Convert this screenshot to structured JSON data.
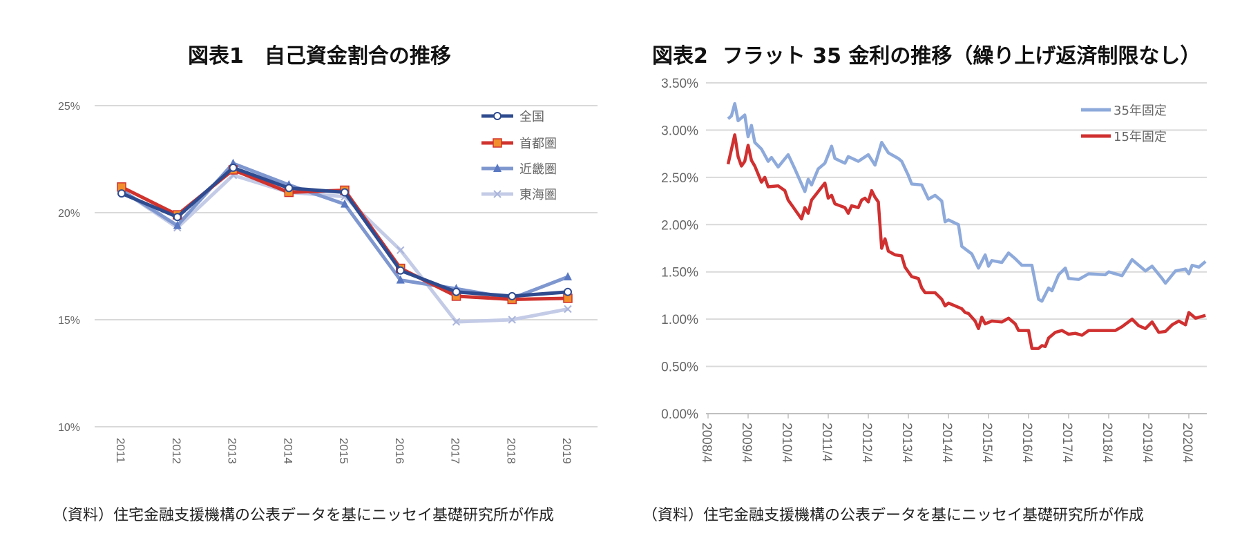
{
  "chart_data": [
    {
      "type": "line",
      "title": "図表1　自己資金割合の推移",
      "note": "（資料）住宅金融支援機構の公表データを基にニッセイ基礎研究所が作成",
      "categories": [
        "2011",
        "2012",
        "2013",
        "2014",
        "2015",
        "2016",
        "2017",
        "2018",
        "2019"
      ],
      "ylim": [
        10,
        25
      ],
      "yticks": [
        "10%",
        "15%",
        "20%",
        "25%"
      ],
      "ytick_values": [
        10,
        15,
        20,
        25
      ],
      "grid": true,
      "legend": "top-right",
      "series": [
        {
          "name": "全国",
          "color": "#2f4b8f",
          "marker": "circle",
          "values": [
            20.9,
            19.8,
            22.1,
            21.15,
            20.95,
            17.3,
            16.3,
            16.1,
            16.3
          ]
        },
        {
          "name": "首都圏",
          "color": "#d0322d",
          "marker_color": "#f28e2b",
          "marker": "square",
          "values": [
            21.2,
            19.9,
            22.0,
            20.95,
            21.05,
            17.4,
            16.1,
            15.95,
            16.0
          ]
        },
        {
          "name": "近畿圏",
          "color": "#7f97cf",
          "marker": "triangle",
          "values": [
            21.05,
            19.4,
            22.3,
            21.3,
            20.4,
            16.85,
            16.45,
            16.0,
            17.0
          ]
        },
        {
          "name": "東海圏",
          "color": "#c3cbe6",
          "marker": "x",
          "values": [
            21.05,
            19.3,
            21.75,
            20.95,
            20.75,
            18.25,
            14.9,
            15.0,
            15.5
          ]
        }
      ]
    },
    {
      "type": "line",
      "title": "図表2  フラット 35 金利の推移（繰り上げ返済制限なし）",
      "note": "（資料）住宅金融支援機構の公表データを基にニッセイ基礎研究所が作成",
      "xticks": [
        "2008/4",
        "2009/4",
        "2010/4",
        "2011/4",
        "2012/4",
        "2013/4",
        "2014/4",
        "2015/4",
        "2016/4",
        "2017/4",
        "2018/4",
        "2019/4",
        "2020/4"
      ],
      "ylim": [
        0,
        3.5
      ],
      "yticks": [
        "0.00%",
        "0.50%",
        "1.00%",
        "1.50%",
        "2.00%",
        "2.50%",
        "3.00%",
        "3.50%"
      ],
      "ytick_values": [
        0,
        0.5,
        1,
        1.5,
        2,
        2.5,
        3,
        3.5
      ],
      "grid": true,
      "legend": "top-right",
      "series": [
        {
          "name": "35年固定",
          "color": "#8eaadb",
          "points": [
            [
              "2008/10",
              3.12
            ],
            [
              "2008/11",
              3.15
            ],
            [
              "2008/12",
              3.28
            ],
            [
              "2009/1",
              3.1
            ],
            [
              "2009/3",
              3.16
            ],
            [
              "2009/4",
              2.93
            ],
            [
              "2009/5",
              3.05
            ],
            [
              "2009/6",
              2.87
            ],
            [
              "2009/8",
              2.8
            ],
            [
              "2009/10",
              2.67
            ],
            [
              "2009/11",
              2.71
            ],
            [
              "2010/1",
              2.61
            ],
            [
              "2010/4",
              2.74
            ],
            [
              "2010/6",
              2.59
            ],
            [
              "2010/9",
              2.35
            ],
            [
              "2010/10",
              2.48
            ],
            [
              "2010/11",
              2.42
            ],
            [
              "2011/1",
              2.59
            ],
            [
              "2011/3",
              2.65
            ],
            [
              "2011/5",
              2.83
            ],
            [
              "2011/6",
              2.7
            ],
            [
              "2011/9",
              2.65
            ],
            [
              "2011/10",
              2.72
            ],
            [
              "2012/1",
              2.67
            ],
            [
              "2012/4",
              2.74
            ],
            [
              "2012/6",
              2.63
            ],
            [
              "2012/8",
              2.87
            ],
            [
              "2012/10",
              2.76
            ],
            [
              "2013/1",
              2.7
            ],
            [
              "2013/2",
              2.67
            ],
            [
              "2013/4",
              2.52
            ],
            [
              "2013/5",
              2.43
            ],
            [
              "2013/8",
              2.42
            ],
            [
              "2013/10",
              2.27
            ],
            [
              "2013/12",
              2.31
            ],
            [
              "2014/2",
              2.25
            ],
            [
              "2014/3",
              2.03
            ],
            [
              "2014/4",
              2.05
            ],
            [
              "2014/7",
              2.0
            ],
            [
              "2014/8",
              1.77
            ],
            [
              "2014/11",
              1.69
            ],
            [
              "2015/1",
              1.54
            ],
            [
              "2015/3",
              1.68
            ],
            [
              "2015/4",
              1.56
            ],
            [
              "2015/5",
              1.62
            ],
            [
              "2015/8",
              1.6
            ],
            [
              "2015/10",
              1.7
            ],
            [
              "2015/12",
              1.64
            ],
            [
              "2016/2",
              1.57
            ],
            [
              "2016/5",
              1.57
            ],
            [
              "2016/7",
              1.21
            ],
            [
              "2016/8",
              1.19
            ],
            [
              "2016/10",
              1.33
            ],
            [
              "2016/11",
              1.3
            ],
            [
              "2017/1",
              1.47
            ],
            [
              "2017/3",
              1.54
            ],
            [
              "2017/4",
              1.43
            ],
            [
              "2017/7",
              1.42
            ],
            [
              "2017/10",
              1.48
            ],
            [
              "2018/3",
              1.47
            ],
            [
              "2018/4",
              1.5
            ],
            [
              "2018/8",
              1.46
            ],
            [
              "2018/11",
              1.63
            ],
            [
              "2019/3",
              1.51
            ],
            [
              "2019/5",
              1.56
            ],
            [
              "2019/8",
              1.43
            ],
            [
              "2019/9",
              1.38
            ],
            [
              "2019/12",
              1.51
            ],
            [
              "2020/3",
              1.53
            ],
            [
              "2020/4",
              1.48
            ],
            [
              "2020/5",
              1.57
            ],
            [
              "2020/7",
              1.55
            ],
            [
              "2020/9",
              1.61
            ]
          ]
        },
        {
          "name": "15年固定",
          "color": "#d03030",
          "points": [
            [
              "2008/10",
              2.64
            ],
            [
              "2008/12",
              2.95
            ],
            [
              "2009/1",
              2.72
            ],
            [
              "2009/2",
              2.62
            ],
            [
              "2009/3",
              2.67
            ],
            [
              "2009/4",
              2.84
            ],
            [
              "2009/5",
              2.68
            ],
            [
              "2009/6",
              2.62
            ],
            [
              "2009/8",
              2.45
            ],
            [
              "2009/9",
              2.5
            ],
            [
              "2009/10",
              2.4
            ],
            [
              "2010/1",
              2.41
            ],
            [
              "2010/3",
              2.36
            ],
            [
              "2010/4",
              2.26
            ],
            [
              "2010/6",
              2.16
            ],
            [
              "2010/8",
              2.06
            ],
            [
              "2010/9",
              2.18
            ],
            [
              "2010/10",
              2.12
            ],
            [
              "2010/11",
              2.26
            ],
            [
              "2011/1",
              2.35
            ],
            [
              "2011/3",
              2.44
            ],
            [
              "2011/4",
              2.28
            ],
            [
              "2011/5",
              2.31
            ],
            [
              "2011/6",
              2.22
            ],
            [
              "2011/9",
              2.18
            ],
            [
              "2011/10",
              2.12
            ],
            [
              "2011/11",
              2.2
            ],
            [
              "2012/1",
              2.18
            ],
            [
              "2012/2",
              2.26
            ],
            [
              "2012/3",
              2.28
            ],
            [
              "2012/4",
              2.24
            ],
            [
              "2012/5",
              2.36
            ],
            [
              "2012/6",
              2.29
            ],
            [
              "2012/7",
              2.24
            ],
            [
              "2012/8",
              1.75
            ],
            [
              "2012/9",
              1.85
            ],
            [
              "2012/10",
              1.72
            ],
            [
              "2012/12",
              1.68
            ],
            [
              "2013/2",
              1.67
            ],
            [
              "2013/3",
              1.55
            ],
            [
              "2013/5",
              1.45
            ],
            [
              "2013/7",
              1.43
            ],
            [
              "2013/8",
              1.33
            ],
            [
              "2013/9",
              1.28
            ],
            [
              "2013/12",
              1.28
            ],
            [
              "2014/2",
              1.21
            ],
            [
              "2014/3",
              1.14
            ],
            [
              "2014/4",
              1.17
            ],
            [
              "2014/6",
              1.14
            ],
            [
              "2014/8",
              1.11
            ],
            [
              "2014/9",
              1.07
            ],
            [
              "2014/10",
              1.06
            ],
            [
              "2014/12",
              0.98
            ],
            [
              "2015/1",
              0.9
            ],
            [
              "2015/2",
              1.02
            ],
            [
              "2015/3",
              0.95
            ],
            [
              "2015/5",
              0.98
            ],
            [
              "2015/8",
              0.97
            ],
            [
              "2015/10",
              1.01
            ],
            [
              "2015/12",
              0.95
            ],
            [
              "2016/1",
              0.88
            ],
            [
              "2016/4",
              0.88
            ],
            [
              "2016/5",
              0.69
            ],
            [
              "2016/7",
              0.69
            ],
            [
              "2016/8",
              0.72
            ],
            [
              "2016/9",
              0.71
            ],
            [
              "2016/10",
              0.8
            ],
            [
              "2016/12",
              0.86
            ],
            [
              "2017/2",
              0.88
            ],
            [
              "2017/4",
              0.84
            ],
            [
              "2017/6",
              0.85
            ],
            [
              "2017/8",
              0.83
            ],
            [
              "2017/10",
              0.88
            ],
            [
              "2018/1",
              0.88
            ],
            [
              "2018/4",
              0.88
            ],
            [
              "2018/6",
              0.88
            ],
            [
              "2018/8",
              0.92
            ],
            [
              "2018/11",
              1.0
            ],
            [
              "2019/1",
              0.93
            ],
            [
              "2019/3",
              0.9
            ],
            [
              "2019/5",
              0.97
            ],
            [
              "2019/7",
              0.86
            ],
            [
              "2019/9",
              0.87
            ],
            [
              "2019/11",
              0.94
            ],
            [
              "2020/1",
              0.98
            ],
            [
              "2020/3",
              0.94
            ],
            [
              "2020/4",
              1.07
            ],
            [
              "2020/6",
              1.01
            ],
            [
              "2020/9",
              1.04
            ]
          ]
        }
      ]
    }
  ]
}
